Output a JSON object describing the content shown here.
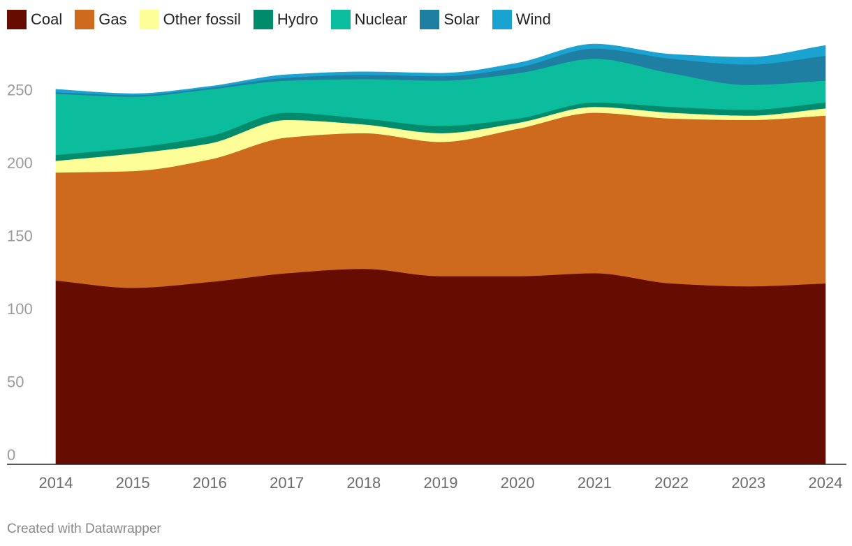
{
  "chart_data": {
    "type": "area",
    "stacked": true,
    "x": [
      2014,
      2015,
      2016,
      2017,
      2018,
      2019,
      2020,
      2021,
      2022,
      2023,
      2024
    ],
    "x_tick_labels": [
      "2014",
      "2015",
      "2016",
      "2017",
      "2018",
      "2019",
      "2020",
      "2021",
      "2022",
      "2023",
      "2024"
    ],
    "ylim": [
      0,
      280
    ],
    "y_ticks": [
      0,
      50,
      100,
      150,
      200,
      250
    ],
    "grid": false,
    "legend_position": "top-left",
    "series": [
      {
        "name": "Coal",
        "color": "#660c00",
        "values": [
          126,
          121,
          125,
          131,
          134,
          129,
          129,
          131,
          124,
          122,
          124
        ]
      },
      {
        "name": "Gas",
        "color": "#cd6a1e",
        "values": [
          74,
          80,
          84,
          93,
          93,
          92,
          101,
          110,
          113,
          114,
          115
        ]
      },
      {
        "name": "Other fossil",
        "color": "#fefe99",
        "values": [
          8,
          12,
          11,
          12,
          6,
          6,
          4,
          4,
          4,
          3,
          5
        ]
      },
      {
        "name": "Hydro",
        "color": "#008c6c",
        "values": [
          4,
          4,
          5,
          5,
          4,
          5,
          3,
          3,
          4,
          4,
          4
        ]
      },
      {
        "name": "Nuclear",
        "color": "#0bbc9d",
        "values": [
          42,
          35,
          32,
          22,
          27,
          31,
          31,
          30,
          23,
          17,
          15
        ]
      },
      {
        "name": "Solar",
        "color": "#1e7fa3",
        "values": [
          1,
          1,
          1,
          2,
          3,
          3,
          4,
          7,
          10,
          14,
          17
        ]
      },
      {
        "name": "Wind",
        "color": "#1aa2d1",
        "values": [
          2,
          1,
          1,
          2,
          2,
          2,
          3,
          3,
          3,
          5,
          7
        ]
      }
    ],
    "footer": "Created with Datawrapper"
  }
}
